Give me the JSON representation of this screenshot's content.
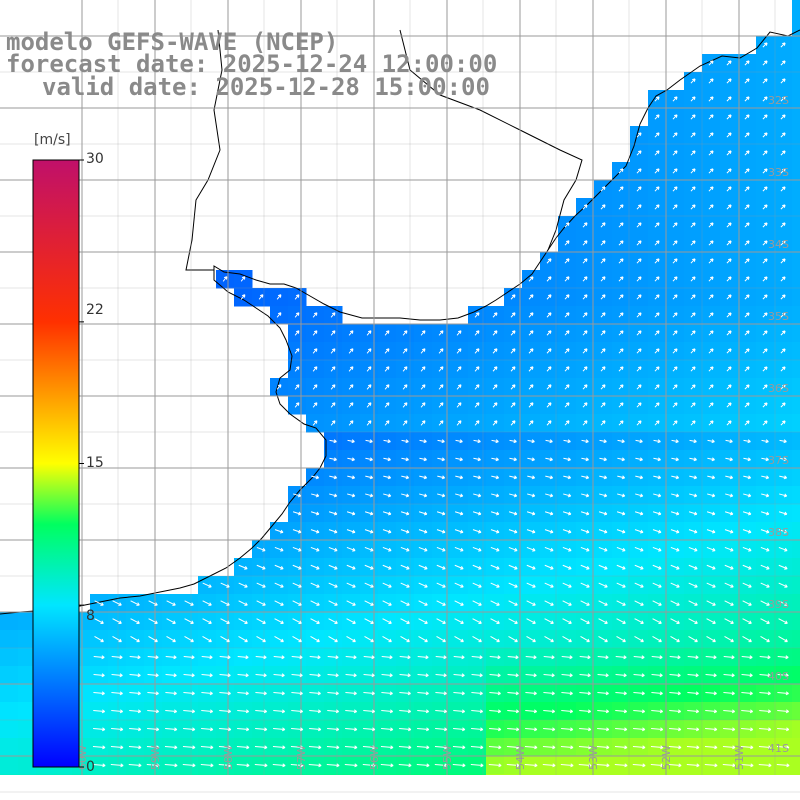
{
  "title": {
    "line1": "modelo GEFS-WAVE (NCEP)",
    "line2": "forecast date: 2025-12-24 12:00:00",
    "line3": "valid date: 2025-12-28 15:00:00"
  },
  "colorbar": {
    "units": "[m/s]",
    "ticks": [
      "30",
      "22",
      "15",
      "8",
      "0"
    ],
    "tick_values": [
      30,
      22,
      15,
      8,
      0
    ],
    "min": 0,
    "max": 30,
    "stops": [
      {
        "v": 0,
        "c": "#0000ff"
      },
      {
        "v": 8,
        "c": "#00e6ff"
      },
      {
        "v": 12,
        "c": "#00ff60"
      },
      {
        "v": 15,
        "c": "#ffff00"
      },
      {
        "v": 22,
        "c": "#ff3000"
      },
      {
        "v": 30,
        "c": "#c0106a"
      }
    ]
  },
  "map": {
    "lat_labels": [
      "32S",
      "33S",
      "34S",
      "35S",
      "36S",
      "37S",
      "38S",
      "39S",
      "40S",
      "41S"
    ],
    "lon_labels": [
      "60W",
      "59W",
      "58W",
      "57W",
      "56W",
      "55W",
      "54W",
      "53W",
      "52W",
      "51W"
    ],
    "land_color": "#ffffff",
    "coast_color": "#000000",
    "grid_color": "#9a9a9a",
    "arrow_color": "#ffffff"
  }
}
